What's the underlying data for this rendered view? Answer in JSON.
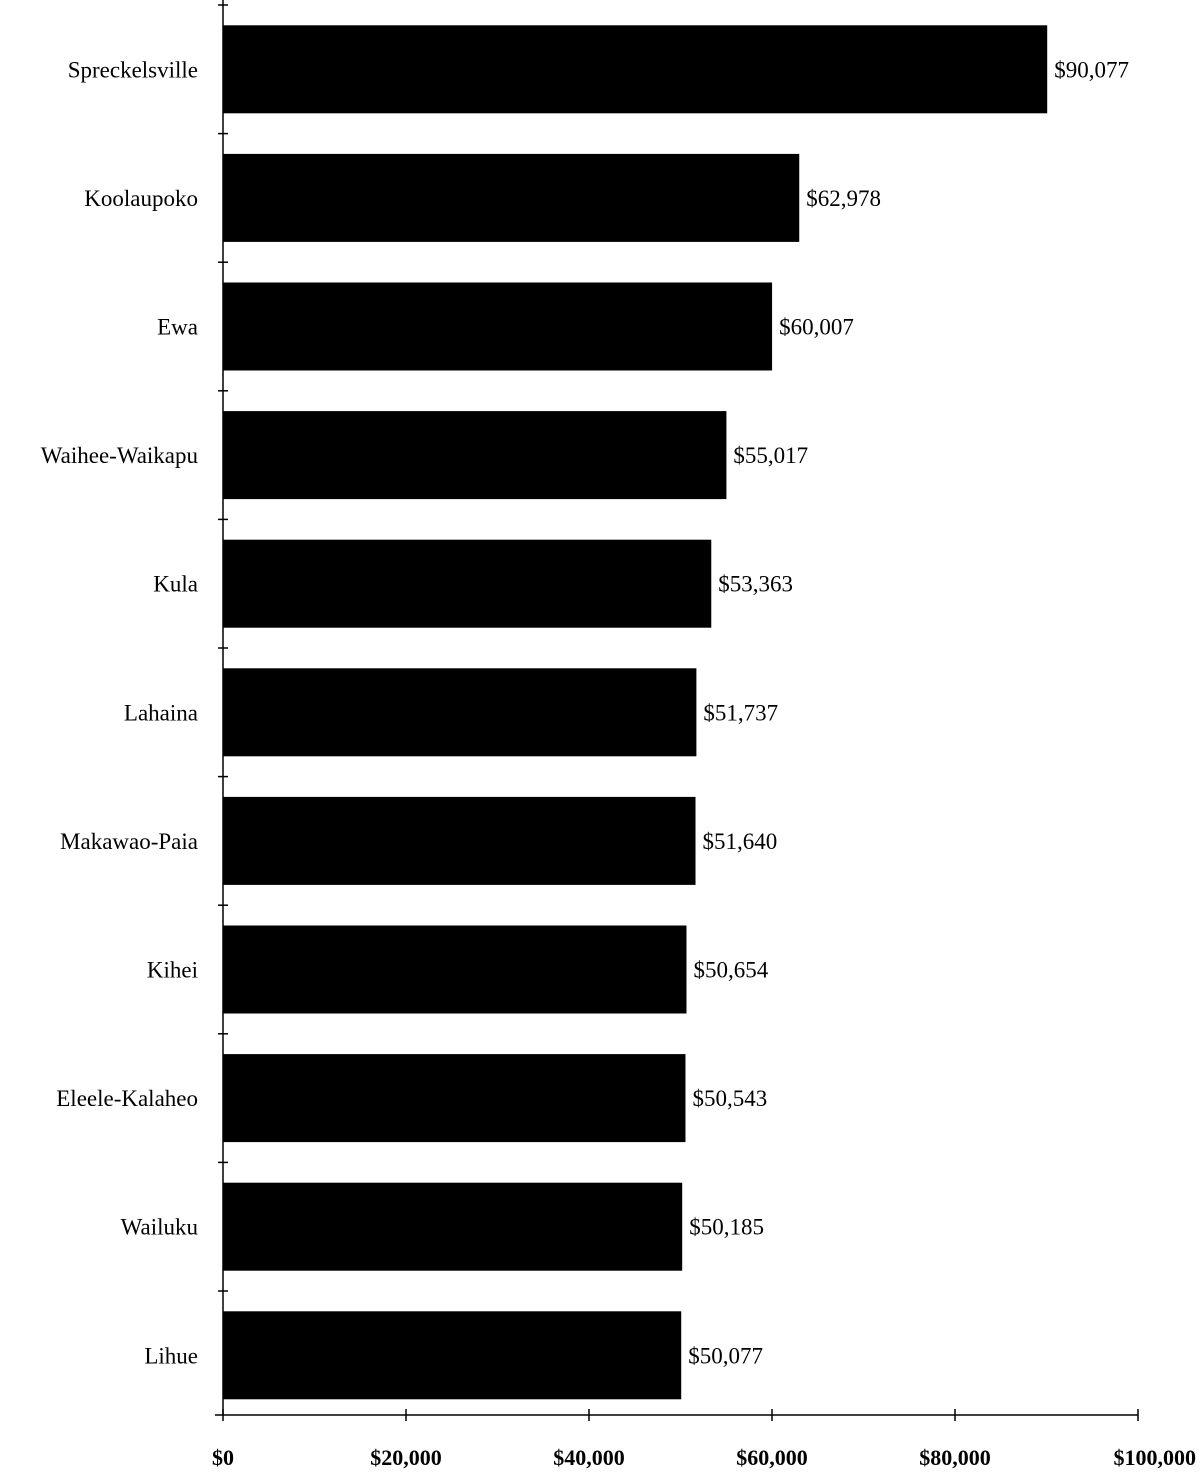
{
  "chart_data": {
    "type": "bar",
    "orientation": "horizontal",
    "categories": [
      "Spreckelsville",
      "Koolaupoko",
      "Ewa",
      "Waihee-Waikapu",
      "Kula",
      "Lahaina",
      "Makawao-Paia",
      "Kihei",
      "Eleele-Kalaheo",
      "Wailuku",
      "Lihue"
    ],
    "values": [
      90077,
      62978,
      60007,
      55017,
      53363,
      51737,
      51640,
      50654,
      50543,
      50185,
      50077
    ],
    "value_labels": [
      "$90,077",
      "$62,978",
      "$60,007",
      "$55,017",
      "$53,363",
      "$51,737",
      "$51,640",
      "$50,654",
      "$50,543",
      "$50,185",
      "$50,077"
    ],
    "xlim": [
      0,
      100000
    ],
    "xticks": [
      0,
      20000,
      40000,
      60000,
      80000,
      100000
    ],
    "xtick_labels": [
      "$0",
      "$20,000",
      "$40,000",
      "$60,000",
      "$80,000",
      "$100,000"
    ],
    "title": "",
    "xlabel": "",
    "ylabel": "",
    "grid": false,
    "legend": "none",
    "bar_color": "#000000"
  }
}
